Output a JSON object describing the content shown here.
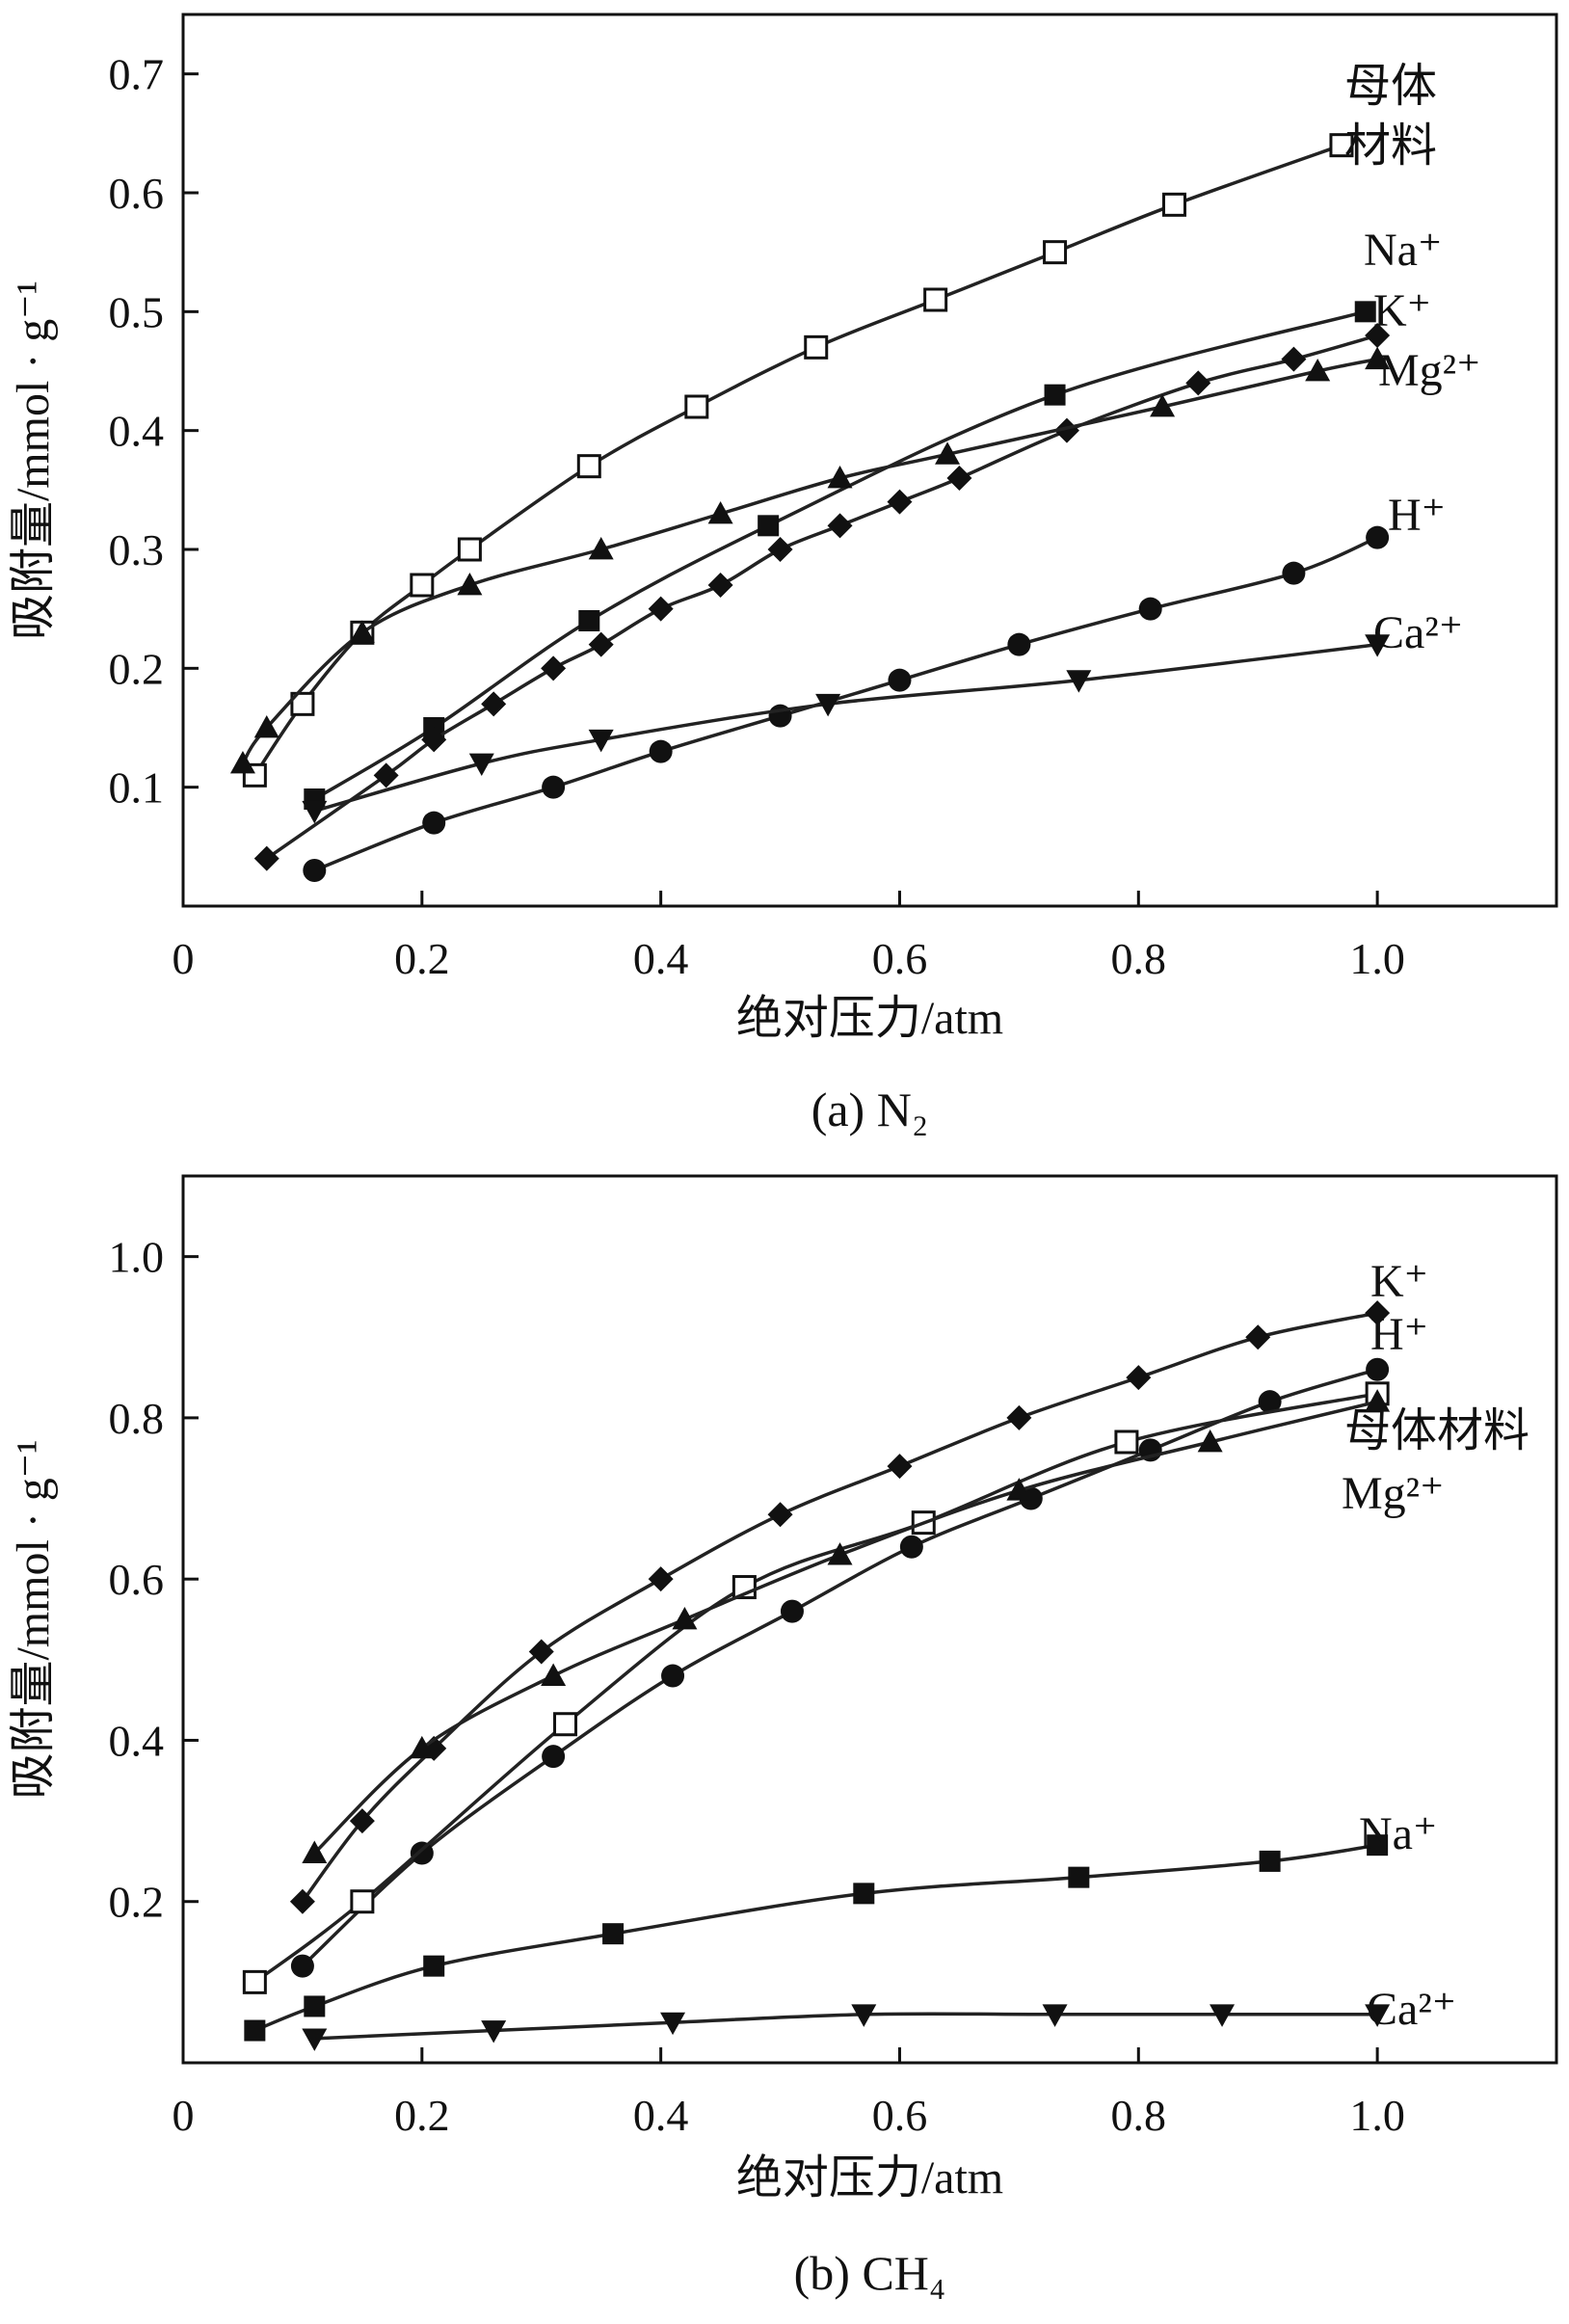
{
  "chart_data": [
    {
      "type": "line",
      "caption": "(a) N₂",
      "xlabel": "绝对压力/atm",
      "ylabel": "吸附量/mmol · g⁻¹",
      "xlim": [
        0,
        1.15
      ],
      "ylim": [
        0,
        0.75
      ],
      "xticks": [
        0,
        0.2,
        0.4,
        0.6,
        0.8,
        1.0
      ],
      "xtick_labels": [
        "0",
        "0.2",
        "0.4",
        "0.6",
        "0.8",
        "1.0"
      ],
      "yticks": [
        0.1,
        0.2,
        0.3,
        0.4,
        0.5,
        0.6,
        0.7
      ],
      "ytick_labels": [
        "0.1",
        "0.2",
        "0.3",
        "0.4",
        "0.5",
        "0.6",
        "0.7"
      ],
      "series": [
        {
          "name": "母体材料",
          "label_lines": [
            "母体",
            "材料"
          ],
          "marker": "square-open",
          "x": [
            0.06,
            0.1,
            0.15,
            0.2,
            0.24,
            0.34,
            0.43,
            0.53,
            0.63,
            0.73,
            0.83,
            0.97
          ],
          "y": [
            0.11,
            0.17,
            0.23,
            0.27,
            0.3,
            0.37,
            0.42,
            0.47,
            0.51,
            0.55,
            0.59,
            0.64
          ]
        },
        {
          "name": "Na⁺",
          "label_lines": [
            "Na⁺"
          ],
          "marker": "square",
          "x": [
            0.11,
            0.21,
            0.34,
            0.49,
            0.73,
            0.99
          ],
          "y": [
            0.09,
            0.15,
            0.24,
            0.32,
            0.43,
            0.5
          ]
        },
        {
          "name": "K⁺",
          "label_lines": [
            "K⁺"
          ],
          "marker": "diamond",
          "x": [
            0.07,
            0.17,
            0.21,
            0.26,
            0.31,
            0.35,
            0.4,
            0.45,
            0.5,
            0.55,
            0.6,
            0.65,
            0.74,
            0.85,
            0.93,
            1.0
          ],
          "y": [
            0.04,
            0.11,
            0.14,
            0.17,
            0.2,
            0.22,
            0.25,
            0.27,
            0.3,
            0.32,
            0.34,
            0.36,
            0.4,
            0.44,
            0.46,
            0.48
          ]
        },
        {
          "name": "Mg²⁺",
          "label_lines": [
            "Mg²⁺"
          ],
          "marker": "triangle-up",
          "x": [
            0.05,
            0.07,
            0.15,
            0.24,
            0.35,
            0.45,
            0.55,
            0.64,
            0.82,
            0.95,
            1.0
          ],
          "y": [
            0.12,
            0.15,
            0.23,
            0.27,
            0.3,
            0.33,
            0.36,
            0.38,
            0.42,
            0.45,
            0.46
          ]
        },
        {
          "name": "H⁺",
          "label_lines": [
            "H⁺"
          ],
          "marker": "circle",
          "x": [
            0.11,
            0.21,
            0.31,
            0.4,
            0.5,
            0.6,
            0.7,
            0.81,
            0.93,
            1.0
          ],
          "y": [
            0.03,
            0.07,
            0.1,
            0.13,
            0.16,
            0.19,
            0.22,
            0.25,
            0.28,
            0.31
          ]
        },
        {
          "name": "Ca²⁺",
          "label_lines": [
            "Ca²⁺"
          ],
          "marker": "triangle-down",
          "x": [
            0.11,
            0.25,
            0.35,
            0.54,
            0.75,
            1.0
          ],
          "y": [
            0.08,
            0.12,
            0.14,
            0.17,
            0.19,
            0.22
          ]
        }
      ]
    },
    {
      "type": "line",
      "caption": "(b) CH₄",
      "xlabel": "绝对压力/atm",
      "ylabel": "吸附量/mmol · g⁻¹",
      "xlim": [
        0,
        1.15
      ],
      "ylim": [
        0,
        1.1
      ],
      "xticks": [
        0,
        0.2,
        0.4,
        0.6,
        0.8,
        1.0
      ],
      "xtick_labels": [
        "0",
        "0.2",
        "0.4",
        "0.6",
        "0.8",
        "1.0"
      ],
      "yticks": [
        0.2,
        0.4,
        0.6,
        0.8,
        1.0
      ],
      "ytick_labels": [
        "0.2",
        "0.4",
        "0.6",
        "0.8",
        "1.0"
      ],
      "series": [
        {
          "name": "K⁺",
          "label_lines": [
            "K⁺"
          ],
          "marker": "diamond",
          "x": [
            0.1,
            0.15,
            0.21,
            0.3,
            0.4,
            0.5,
            0.6,
            0.7,
            0.8,
            0.9,
            1.0
          ],
          "y": [
            0.2,
            0.3,
            0.39,
            0.51,
            0.6,
            0.68,
            0.74,
            0.8,
            0.85,
            0.9,
            0.93
          ]
        },
        {
          "name": "H⁺",
          "label_lines": [
            "H⁺"
          ],
          "marker": "circle",
          "x": [
            0.1,
            0.2,
            0.31,
            0.41,
            0.51,
            0.61,
            0.71,
            0.81,
            0.91,
            1.0
          ],
          "y": [
            0.12,
            0.26,
            0.38,
            0.48,
            0.56,
            0.64,
            0.7,
            0.76,
            0.82,
            0.86
          ]
        },
        {
          "name": "母体材料",
          "label_lines": [
            "母体材料"
          ],
          "marker": "square-open",
          "x": [
            0.06,
            0.15,
            0.32,
            0.47,
            0.62,
            0.79,
            1.0
          ],
          "y": [
            0.1,
            0.2,
            0.42,
            0.59,
            0.67,
            0.77,
            0.83
          ]
        },
        {
          "name": "Mg²⁺",
          "label_lines": [
            "Mg²⁺"
          ],
          "marker": "triangle-up",
          "x": [
            0.11,
            0.2,
            0.31,
            0.42,
            0.55,
            0.7,
            0.86,
            1.0
          ],
          "y": [
            0.26,
            0.39,
            0.48,
            0.55,
            0.63,
            0.71,
            0.77,
            0.82
          ]
        },
        {
          "name": "Na⁺",
          "label_lines": [
            "Na⁺"
          ],
          "marker": "square",
          "x": [
            0.06,
            0.11,
            0.21,
            0.36,
            0.57,
            0.75,
            0.91,
            1.0
          ],
          "y": [
            0.04,
            0.07,
            0.12,
            0.16,
            0.21,
            0.23,
            0.25,
            0.27
          ]
        },
        {
          "name": "Ca²⁺",
          "label_lines": [
            "Ca²⁺"
          ],
          "marker": "triangle-down",
          "x": [
            0.11,
            0.26,
            0.41,
            0.57,
            0.73,
            0.87,
            1.0
          ],
          "y": [
            0.03,
            0.04,
            0.05,
            0.06,
            0.06,
            0.06,
            0.06
          ]
        }
      ]
    }
  ]
}
